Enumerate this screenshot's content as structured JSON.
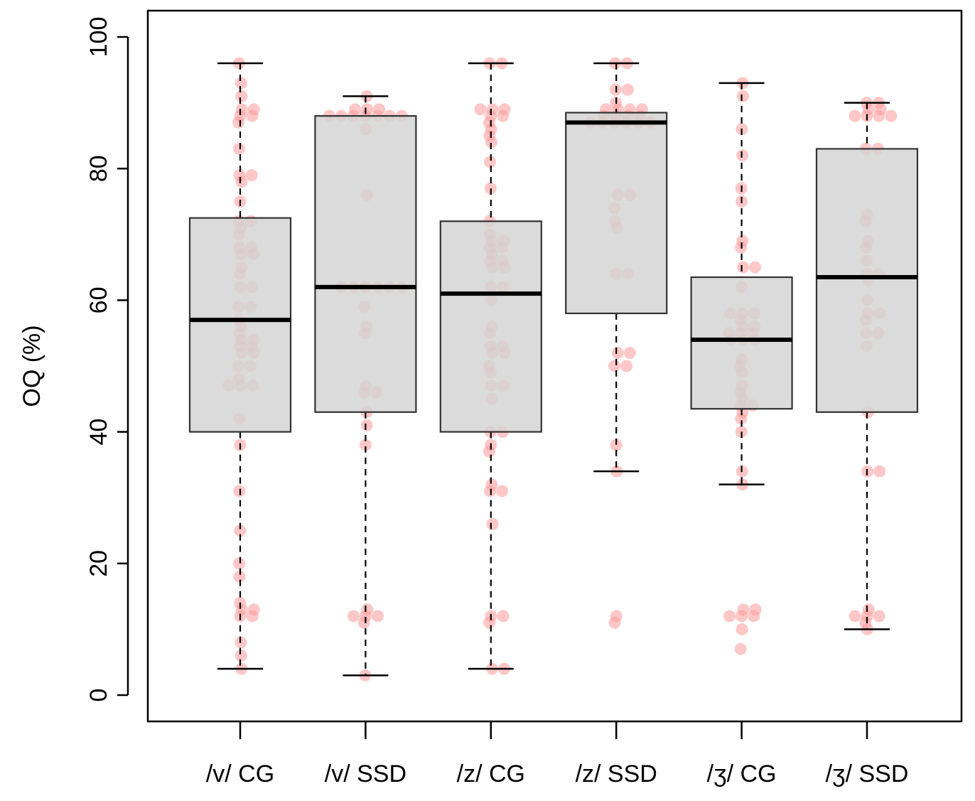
{
  "chart_data": {
    "type": "boxplot",
    "title": "",
    "xlabel": "",
    "ylabel": "OQ (%)",
    "ylim": [
      -4,
      104
    ],
    "yticks": [
      0,
      20,
      40,
      60,
      80,
      100
    ],
    "categories": [
      "/v/ CG",
      "/v/ SSD",
      "/z/ CG",
      "/z/ SSD",
      "/ʒ/ CG",
      "/ʒ/ SSD"
    ],
    "box_color": "#d3d3d3",
    "point_color": "#ff9999",
    "boxes": [
      {
        "label": "/v/ CG",
        "whisker_low": 4,
        "q1": 40,
        "median": 57,
        "q3": 72.5,
        "whisker_high": 96
      },
      {
        "label": "/v/ SSD",
        "whisker_low": 3,
        "q1": 43,
        "median": 62,
        "q3": 88,
        "whisker_high": 91
      },
      {
        "label": "/z/ CG",
        "whisker_low": 4,
        "q1": 40,
        "median": 61,
        "q3": 72,
        "whisker_high": 96
      },
      {
        "label": "/z/ SSD",
        "whisker_low": 34,
        "q1": 58,
        "median": 87,
        "q3": 88.5,
        "whisker_high": 96
      },
      {
        "label": "/ʒ/ CG",
        "whisker_low": 32,
        "q1": 43.5,
        "median": 54,
        "q3": 63.5,
        "whisker_high": 93
      },
      {
        "label": "/ʒ/ SSD",
        "whisker_low": 10,
        "q1": 43,
        "median": 63.5,
        "q3": 83,
        "whisker_high": 90
      }
    ],
    "points": [
      [
        96,
        93,
        91,
        89,
        89,
        88,
        88,
        87,
        83,
        79,
        79,
        78,
        75,
        72,
        72,
        71,
        70,
        68,
        68,
        67,
        67,
        65,
        64,
        62,
        62,
        59,
        59,
        57,
        56,
        55,
        54,
        54,
        53,
        53,
        52,
        52,
        50,
        50,
        48,
        47,
        47,
        47,
        42,
        38,
        31,
        25,
        20,
        18,
        14,
        13,
        13,
        12,
        12,
        8,
        6,
        4
      ],
      [
        91,
        89,
        89,
        89,
        88,
        88,
        88,
        88,
        88,
        88,
        88,
        86,
        76,
        62,
        62,
        62,
        62,
        62,
        62,
        59,
        56,
        55,
        47,
        46,
        46,
        43,
        41,
        38,
        13,
        12,
        12,
        12,
        11,
        3
      ],
      [
        96,
        96,
        89,
        89,
        89,
        88,
        88,
        87,
        86,
        85,
        84,
        81,
        77,
        72,
        70,
        69,
        69,
        68,
        68,
        67,
        66,
        66,
        65,
        65,
        62,
        62,
        60,
        56,
        55,
        53,
        53,
        52,
        52,
        50,
        49,
        47,
        47,
        45,
        40,
        40,
        38,
        37,
        32,
        31,
        31,
        26,
        12,
        12,
        11,
        4,
        4
      ],
      [
        96,
        96,
        92,
        92,
        90,
        89,
        89,
        89,
        89,
        88,
        88,
        88,
        88,
        87,
        87,
        87,
        87,
        87,
        87,
        76,
        76,
        74,
        72,
        71,
        64,
        64,
        52,
        52,
        50,
        50,
        38,
        34,
        12,
        11
      ],
      [
        93,
        91,
        86,
        82,
        77,
        75,
        69,
        68,
        65,
        65,
        62,
        58,
        58,
        58,
        57,
        56,
        56,
        55,
        55,
        55,
        54,
        54,
        54,
        51,
        50,
        49,
        47,
        46,
        45,
        44,
        44,
        43,
        42,
        40,
        34,
        32,
        13,
        13,
        12,
        12,
        12,
        10,
        7
      ],
      [
        90,
        90,
        89,
        89,
        88,
        88,
        88,
        88,
        83,
        83,
        73,
        72,
        69,
        68,
        66,
        64,
        64,
        63,
        60,
        58,
        58,
        57,
        55,
        55,
        53,
        43,
        34,
        34,
        13,
        12,
        12,
        12,
        11,
        10
      ]
    ]
  }
}
